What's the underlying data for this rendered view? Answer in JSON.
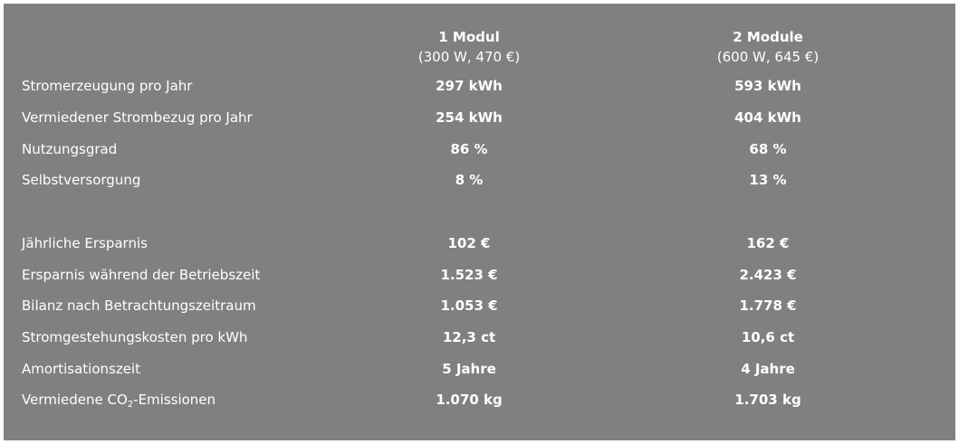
{
  "columns": [
    {
      "title": "1 Modul",
      "subtitle": "(300 W, 470 €)"
    },
    {
      "title": "2 Module",
      "subtitle": "(600 W, 645 €)"
    }
  ],
  "rows": [
    {
      "label": "Stromerzeugung pro Jahr",
      "v1": "297 kWh",
      "v2": "593 kWh"
    },
    {
      "label": "Vermiedener Strombezug pro Jahr",
      "v1": "254 kWh",
      "v2": "404 kWh"
    },
    {
      "label": "Nutzungsgrad",
      "v1": "86 %",
      "v2": "68 %"
    },
    {
      "label": "Selbstversorgung",
      "v1": "8 %",
      "v2": "13 %"
    },
    {
      "label": "Jährliche Ersparnis",
      "v1": "102 €",
      "v2": "162 €"
    },
    {
      "label": "Ersparnis während der Betriebszeit",
      "v1": "1.523 €",
      "v2": "2.423 €"
    },
    {
      "label": "Bilanz nach Betrachtungszeitraum",
      "v1": "1.053 €",
      "v2": "1.778 €"
    },
    {
      "label": "Stromgestehungskosten pro kWh",
      "v1": "12,3 ct",
      "v2": "10,6 ct"
    },
    {
      "label": "Amortisationszeit",
      "v1": "5 Jahre",
      "v2": "4 Jahre"
    },
    {
      "label_pre": "Vermiedene CO",
      "label_sub": "2",
      "label_post": "-Emissionen",
      "v1": "1.070 kg",
      "v2": "1.703 kg"
    }
  ]
}
